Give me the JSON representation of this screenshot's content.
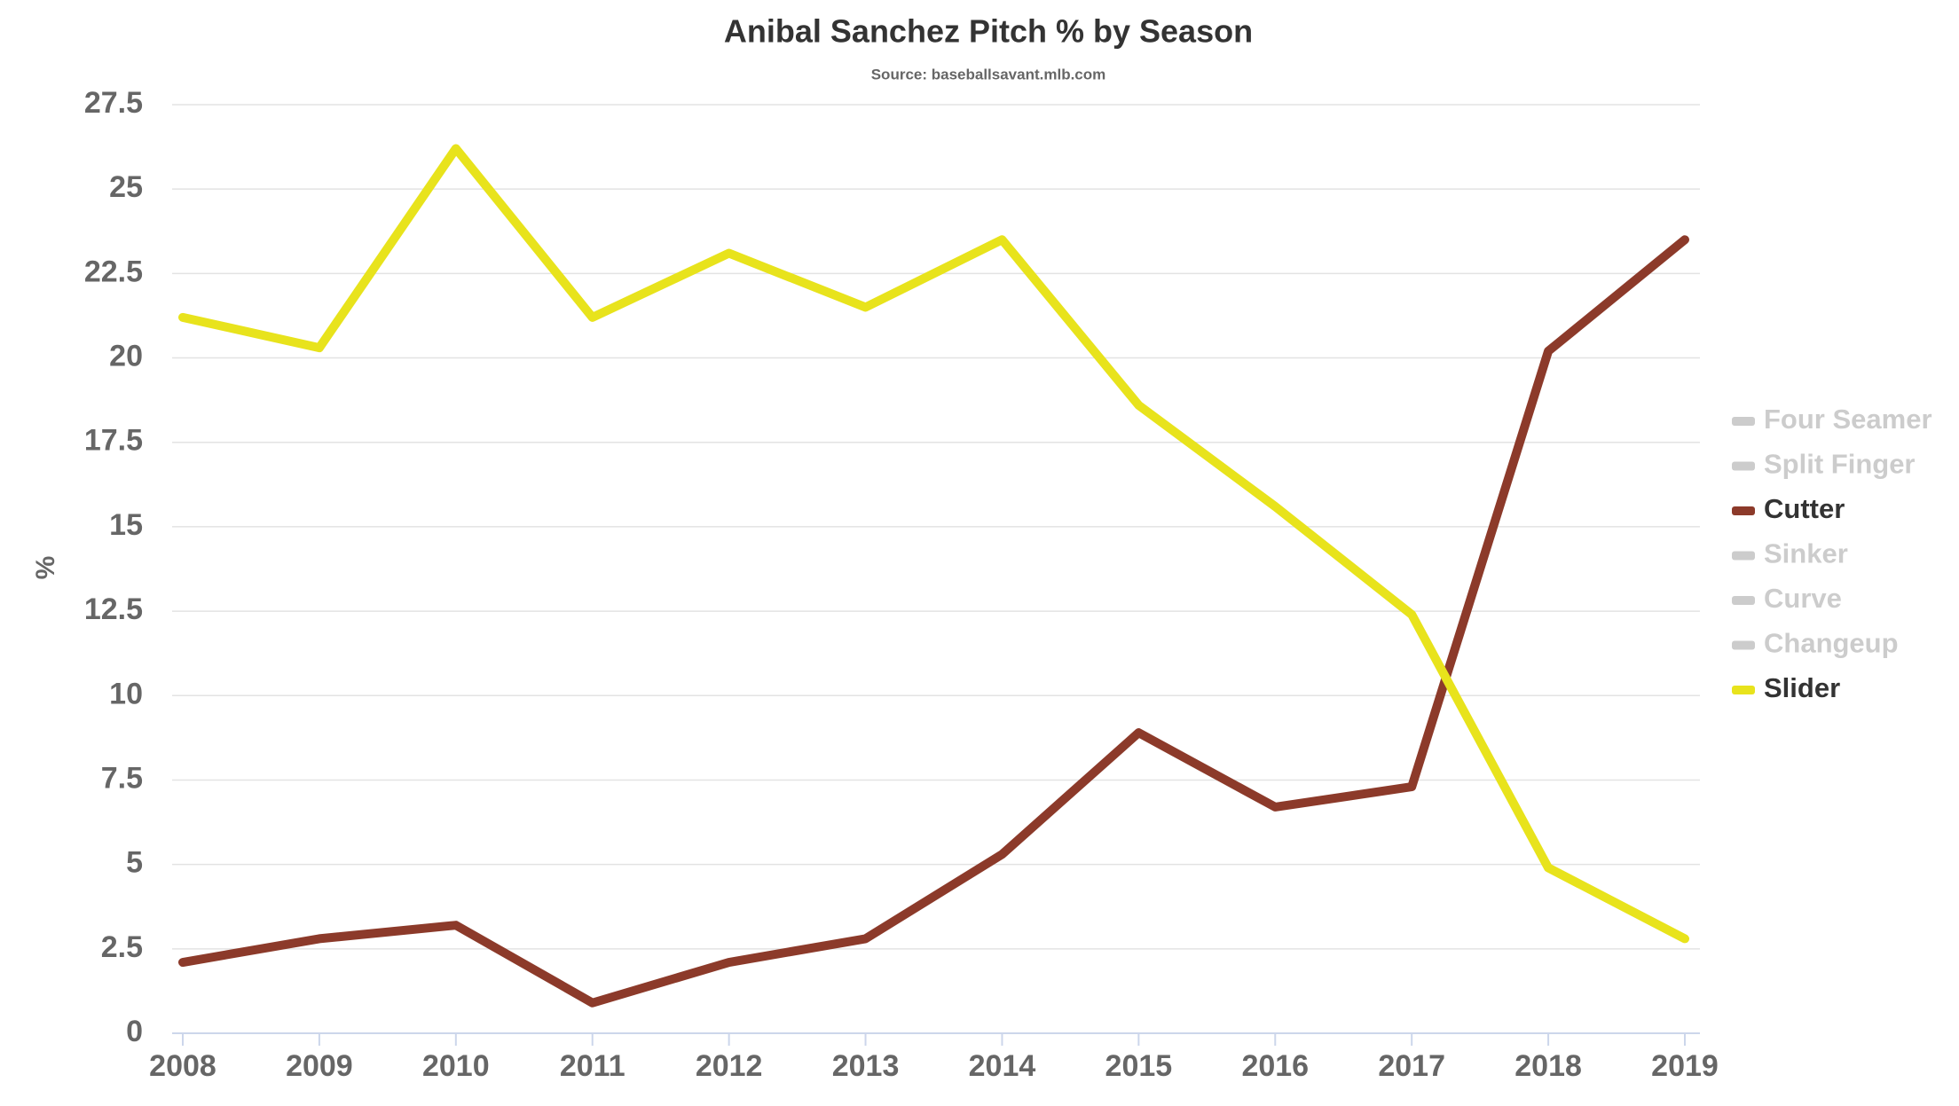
{
  "chart_data": {
    "type": "line",
    "title": "Anibal Sanchez Pitch % by Season",
    "subtitle": "Source: baseballsavant.mlb.com",
    "y_label": "%",
    "x": [
      2008,
      2009,
      2010,
      2011,
      2012,
      2013,
      2014,
      2015,
      2016,
      2017,
      2018,
      2019
    ],
    "xlim": [
      2008,
      2019
    ],
    "xticks": [
      2008,
      2009,
      2010,
      2011,
      2012,
      2013,
      2014,
      2015,
      2016,
      2017,
      2018,
      2019
    ],
    "ylim": [
      0,
      27.5
    ],
    "yticks": [
      0,
      2.5,
      5,
      7.5,
      10,
      12.5,
      15,
      17.5,
      20,
      22.5,
      25,
      27.5
    ],
    "grid": true,
    "legend": "right",
    "series": [
      {
        "name": "Four Seamer",
        "color": "#cccccc",
        "visible": false,
        "values": [
          null,
          null,
          null,
          null,
          null,
          null,
          null,
          null,
          null,
          null,
          null,
          null
        ]
      },
      {
        "name": "Split Finger",
        "color": "#cccccc",
        "visible": false,
        "values": [
          null,
          null,
          null,
          null,
          null,
          null,
          null,
          null,
          null,
          null,
          null,
          null
        ]
      },
      {
        "name": "Cutter",
        "color": "#8c3a2a",
        "visible": true,
        "values": [
          2.1,
          2.8,
          3.2,
          0.9,
          2.1,
          2.8,
          5.3,
          8.9,
          6.7,
          7.3,
          20.2,
          23.5
        ]
      },
      {
        "name": "Sinker",
        "color": "#cccccc",
        "visible": false,
        "values": [
          null,
          null,
          null,
          null,
          null,
          null,
          null,
          null,
          null,
          null,
          null,
          null
        ]
      },
      {
        "name": "Curve",
        "color": "#cccccc",
        "visible": false,
        "values": [
          null,
          null,
          null,
          null,
          null,
          null,
          null,
          null,
          null,
          null,
          null,
          null
        ]
      },
      {
        "name": "Changeup",
        "color": "#cccccc",
        "visible": false,
        "values": [
          null,
          null,
          null,
          null,
          null,
          null,
          null,
          null,
          null,
          null,
          null,
          null
        ]
      },
      {
        "name": "Slider",
        "color": "#e8e31c",
        "visible": true,
        "values": [
          21.2,
          20.3,
          26.2,
          21.2,
          23.1,
          21.5,
          23.5,
          18.6,
          15.6,
          12.4,
          4.9,
          2.8
        ]
      }
    ]
  }
}
